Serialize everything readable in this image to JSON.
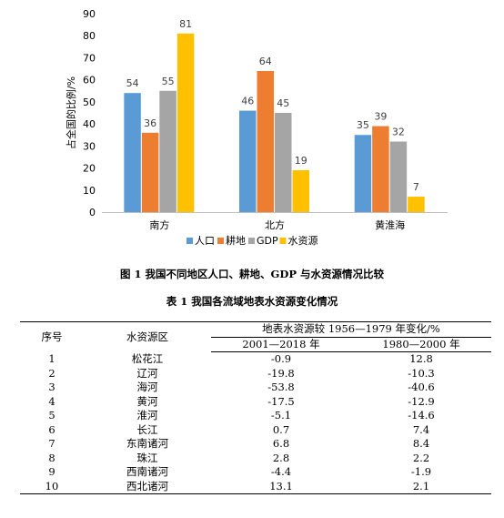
{
  "chart_data": {
    "type": "bar",
    "categories": [
      "南方",
      "北方",
      "黄淮海"
    ],
    "series": [
      {
        "name": "人口",
        "values": [
          54,
          46,
          35
        ],
        "color": "#5B9BD5"
      },
      {
        "name": "耕地",
        "values": [
          36,
          64,
          39
        ],
        "color": "#ED7D31"
      },
      {
        "name": "GDP",
        "values": [
          55,
          45,
          32
        ],
        "color": "#A5A5A5"
      },
      {
        "name": "水资源",
        "values": [
          81,
          19,
          7
        ],
        "color": "#FFC000"
      }
    ],
    "ylabel": "占全国的比例/%",
    "ylim": [
      0,
      90
    ],
    "yticks": [
      0,
      10,
      20,
      30,
      40,
      50,
      60,
      70,
      80,
      90
    ],
    "grid": false,
    "legend": "bottom"
  },
  "figure_caption": "图 1    我国不同地区人口、耕地、GDP 与水资源情况比较",
  "table": {
    "caption": "表 1    我国各流域地表水资源变化情况",
    "headers": {
      "index": "序号",
      "region": "水资源区",
      "change": "地表水资源较 1956—1979 年变化/%",
      "period1": "2001—2018 年",
      "period2": "1980—2000 年"
    },
    "rows": [
      {
        "no": "1",
        "region": "松花江",
        "p1": "-0.9",
        "p2": "12.8"
      },
      {
        "no": "2",
        "region": "辽河",
        "p1": "-19.8",
        "p2": "-10.3"
      },
      {
        "no": "3",
        "region": "海河",
        "p1": "-53.8",
        "p2": "-40.6"
      },
      {
        "no": "4",
        "region": "黄河",
        "p1": "-17.5",
        "p2": "-12.9"
      },
      {
        "no": "5",
        "region": "淮河",
        "p1": "-5.1",
        "p2": "-14.6"
      },
      {
        "no": "6",
        "region": "长江",
        "p1": "0.7",
        "p2": "7.4"
      },
      {
        "no": "7",
        "region": "东南诸河",
        "p1": "6.8",
        "p2": "8.4"
      },
      {
        "no": "8",
        "region": "珠江",
        "p1": "2.8",
        "p2": "2.2"
      },
      {
        "no": "9",
        "region": "西南诸河",
        "p1": "-4.4",
        "p2": "-1.9"
      },
      {
        "no": "10",
        "region": "西北诸河",
        "p1": "13.1",
        "p2": "2.1"
      }
    ]
  }
}
